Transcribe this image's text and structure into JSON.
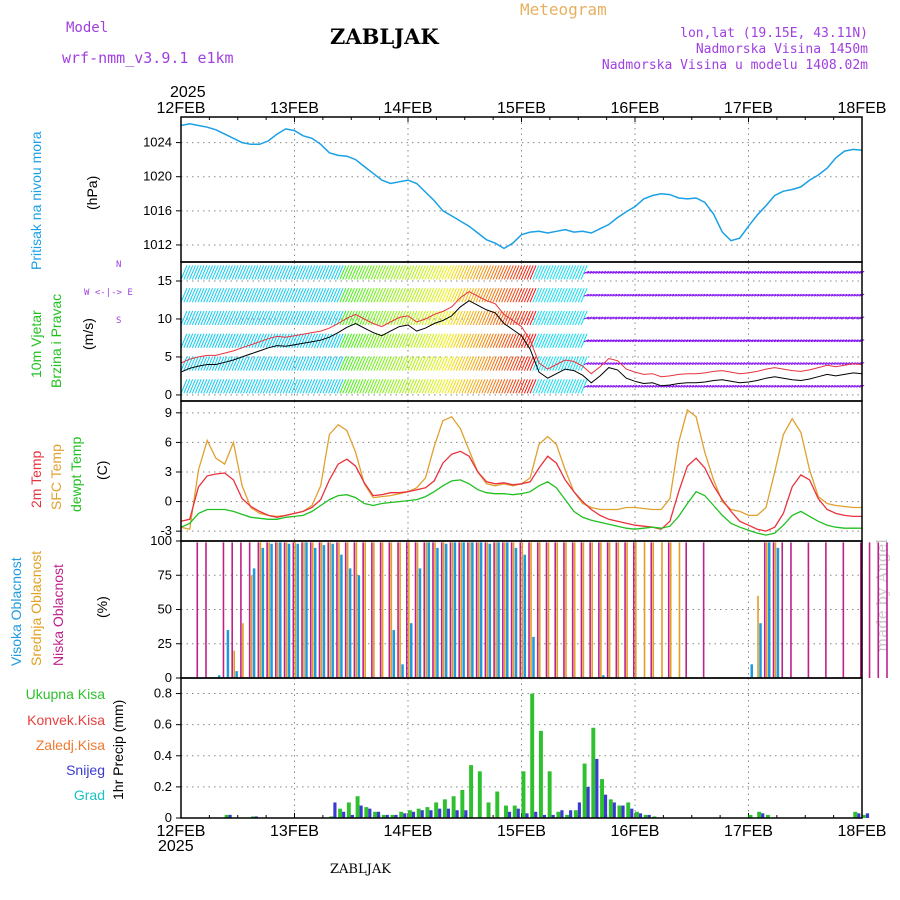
{
  "header": {
    "model_label": "Model",
    "model_name": "wrf-nmm_v3.9.1 e1km",
    "station": "ZABLJAK",
    "meteogram": "Meteogram",
    "lonlat": "lon,lat (19.15E, 43.11N)",
    "altitude": "Nadmorska Visina 1450m",
    "model_altitude": "Nadmorska Visina u modelu 1408.02m",
    "year_top": "2025",
    "year_bottom": "2025",
    "footer_station": "ZABLJAK",
    "watermark": "made by Angel"
  },
  "panel_labels": {
    "pressure": [
      "Pritisak na nivou mora",
      "(hPa)"
    ],
    "wind": [
      "10m Vjetar",
      "Brzina i Pravac",
      "(m/s)"
    ],
    "compass": [
      "N",
      "W <-|-> E",
      "S"
    ],
    "temp": [
      "2m Temp",
      "SFC Temp",
      "dewpt Temp",
      "(C)"
    ],
    "cloud": [
      "Visoka Oblacnost",
      "Srednja Oblacnost",
      "Niska Oblacnost",
      "(%)"
    ],
    "precip_axis": "1hr Precip (mm)",
    "precip_legend": [
      "Ukupna Kisa",
      "Konvek.Kisa",
      "Zaledj.Kisa",
      "Snijeg",
      "Grad"
    ]
  },
  "colors": {
    "pressure": "#1aa0e6",
    "temp2m": "#e8323c",
    "sfc": "#e0a030",
    "dew": "#22c022",
    "high_cloud": "#1e9be0",
    "mid_cloud": "#e0a020",
    "low_cloud": "#c0208c",
    "total_rain": "#2ec02e",
    "conv_rain": "#e84040",
    "frz_rain": "#ee7a30",
    "snow": "#3a3ad0",
    "hail": "#20c0c0",
    "model": "#a040e0",
    "meteogram": "#e6b060"
  },
  "chart_data": [
    {
      "type": "line",
      "x_ticks": [
        "12FEB",
        "13FEB",
        "14FEB",
        "15FEB",
        "16FEB",
        "17FEB",
        "18FEB"
      ],
      "y_ticks": [
        "1012",
        "1016",
        "1020",
        "1024"
      ],
      "ylim": [
        1010,
        1027
      ],
      "series": [
        {
          "values": [
            1026,
            1026.2,
            1026,
            1025.8,
            1025.5,
            1025,
            1024.5,
            1024,
            1023.8,
            1023.8,
            1024.2,
            1025,
            1025.6,
            1025.4,
            1024.8,
            1024.5,
            1023.8,
            1022.8,
            1022.5,
            1022.4,
            1022,
            1021.2,
            1020.4,
            1019.6,
            1019.2,
            1019.4,
            1019.6,
            1019.2,
            1018.2,
            1017.2,
            1016,
            1015.4,
            1014.8,
            1014.2,
            1013.4,
            1012.6,
            1012.2,
            1011.6,
            1012.2,
            1013.2,
            1013.5,
            1013.6,
            1013.4,
            1013.6,
            1013.8,
            1013.5,
            1013.6,
            1013.4,
            1013.9,
            1014.4,
            1015.2,
            1015.9,
            1016.5,
            1017.4,
            1017.8,
            1018,
            1017.9,
            1017.5,
            1017.4,
            1017.5,
            1017,
            1015.6,
            1013.5,
            1012.5,
            1012.8,
            1014.2,
            1015.5,
            1016.6,
            1017.8,
            1018.3,
            1018.5,
            1018.8,
            1019.6,
            1020.2,
            1021,
            1022.2,
            1023,
            1023.2,
            1023.1
          ]
        }
      ]
    },
    {
      "type": "line",
      "y_ticks": [
        "0",
        "5",
        "10",
        "15"
      ],
      "ylim": [
        -0.8,
        17.5
      ],
      "series": [
        {
          "values": [
            3,
            3.5,
            3.8,
            4,
            4,
            4.3,
            4.6,
            5,
            5.4,
            5.8,
            6.2,
            6.5,
            6.4,
            6.6,
            6.8,
            7,
            7.2,
            7.6,
            8.2,
            8.9,
            9.4,
            8.8,
            8.2,
            7.8,
            8.4,
            9,
            9.2,
            8.4,
            8.8,
            9.4,
            9.8,
            10.4,
            11.6,
            12.4,
            11.8,
            11.2,
            10.8,
            9.4,
            8.6,
            7.8,
            6,
            3,
            2.2,
            2.8,
            3.4,
            3.2,
            2.6,
            1.6,
            2.5,
            3.6,
            3.3,
            2.2,
            1.8,
            1.5,
            1.6,
            1.2,
            1.3,
            1.5,
            1.6,
            1.6,
            1.7,
            1.9,
            2,
            1.8,
            1.6,
            1.7,
            1.9,
            2.2,
            2.4,
            2.2,
            2,
            1.9,
            2.1,
            2.4,
            2.7,
            2.5,
            2.7,
            2.9,
            2.8
          ]
        }
      ]
    },
    {
      "type": "line",
      "y_ticks": [
        "-3",
        "0",
        "3",
        "6",
        "9"
      ],
      "ylim": [
        -4,
        10.2
      ],
      "series": [
        {
          "values": [
            -2,
            -1.8,
            1.5,
            2.6,
            2.8,
            2.9,
            2.2,
            0.3,
            -0.5,
            -1,
            -1.4,
            -1.6,
            -1.4,
            -1.2,
            -1,
            -0.6,
            0.2,
            2.2,
            3.8,
            4.3,
            3.6,
            1.9,
            0.6,
            0.7,
            0.9,
            0.9,
            1,
            1.2,
            1.4,
            2.1,
            3.9,
            4.8,
            5.1,
            4.6,
            3,
            2,
            1.8,
            1.9,
            1.7,
            1.8,
            2,
            3.4,
            4.6,
            3.9,
            2.2,
            1,
            0,
            -0.8,
            -1.4,
            -1.8,
            -2,
            -2.2,
            -2.4,
            -2.5,
            -2.6,
            -2.8,
            -2,
            1,
            3.6,
            4.4,
            3.4,
            1.6,
            0.2,
            -1,
            -2,
            -2.4,
            -2.8,
            -3,
            -2.6,
            -1.2,
            1.5,
            2.7,
            2.2,
            0.3,
            -0.8,
            -1.2,
            -1.4,
            -1.5,
            -1.5
          ]
        },
        {
          "values": [
            -2.6,
            -2.8,
            3.2,
            6.2,
            4.4,
            3.8,
            6,
            1.6,
            -0.6,
            -1.2,
            -1.4,
            -1.5,
            -1.4,
            -1.2,
            -1,
            -0.4,
            1.6,
            6.8,
            7.8,
            7.2,
            5,
            1.8,
            0.4,
            0.5,
            0.6,
            0.8,
            1,
            1.4,
            2.4,
            5.6,
            8.2,
            8.6,
            7.4,
            5.2,
            3,
            1.8,
            1.6,
            1.8,
            1.6,
            1.8,
            2.4,
            5.8,
            6.6,
            5.8,
            3.2,
            1,
            -0.2,
            -0.6,
            -0.8,
            -0.8,
            -0.8,
            -0.6,
            -0.6,
            -0.7,
            -0.8,
            -0.8,
            0.3,
            6,
            9.3,
            8.6,
            5,
            2.2,
            0,
            -0.8,
            -1,
            -1.4,
            -1.4,
            -0.6,
            3,
            6.8,
            8.4,
            7,
            3.2,
            0.5,
            -0.2,
            -0.4,
            -0.5,
            -0.6,
            -0.6
          ]
        },
        {
          "values": [
            -2.6,
            -2.2,
            -1.2,
            -0.8,
            -0.8,
            -0.8,
            -1,
            -1.3,
            -1.6,
            -1.7,
            -1.8,
            -1.8,
            -1.6,
            -1.5,
            -1.4,
            -1,
            -0.4,
            0.2,
            0.6,
            0.7,
            0.4,
            -0.2,
            -0.4,
            -0.2,
            -0.1,
            0,
            0.1,
            0.2,
            0.5,
            1,
            1.6,
            2.1,
            2.2,
            1.8,
            1.2,
            0.9,
            0.8,
            0.8,
            0.7,
            0.8,
            1,
            1.6,
            2,
            1.4,
            0.2,
            -1,
            -1.6,
            -1.9,
            -2.1,
            -2.3,
            -2.5,
            -2.7,
            -2.8,
            -2.7,
            -2.6,
            -2.7,
            -2.5,
            -1.5,
            -0.2,
            1,
            0.6,
            -0.4,
            -1.4,
            -2.2,
            -2.6,
            -2.9,
            -3.2,
            -3.4,
            -3.2,
            -2.4,
            -1.4,
            -1,
            -1.5,
            -2,
            -2.4,
            -2.6,
            -2.7,
            -2.7,
            -2.7
          ]
        }
      ]
    },
    {
      "type": "bar",
      "y_ticks": [
        "0",
        "25",
        "50",
        "75",
        "100"
      ],
      "ylim": [
        0,
        100
      ],
      "series": [
        {
          "name": "Visoka Oblacnost",
          "values": [
            0,
            0,
            0,
            0,
            2,
            35,
            5,
            0,
            80,
            95,
            98,
            99,
            98,
            98,
            99,
            95,
            97,
            98,
            90,
            80,
            75,
            0,
            0,
            0,
            35,
            10,
            40,
            80,
            99,
            95,
            98,
            99,
            99,
            99,
            99,
            98,
            99,
            99,
            95,
            90,
            30,
            0,
            0,
            0,
            0,
            0,
            0,
            0,
            2,
            0,
            0,
            0,
            0,
            0,
            0,
            0,
            0,
            0,
            0,
            0,
            0,
            0,
            0,
            0,
            0,
            10,
            40,
            99,
            95,
            0,
            0,
            0,
            0,
            0,
            0,
            0,
            0,
            0,
            0,
            0
          ]
        },
        {
          "name": "Srednja Oblacnost",
          "values": [
            0,
            0,
            0,
            0,
            0,
            0,
            20,
            40,
            75,
            99,
            99,
            99,
            99,
            99,
            99,
            99,
            99,
            99,
            99,
            99,
            99,
            99,
            99,
            99,
            99,
            99,
            99,
            99,
            99,
            99,
            99,
            99,
            99,
            99,
            99,
            99,
            99,
            99,
            99,
            99,
            99,
            99,
            99,
            99,
            99,
            99,
            99,
            99,
            99,
            99,
            99,
            99,
            99,
            99,
            99,
            99,
            99,
            99,
            0,
            0,
            0,
            0,
            0,
            0,
            0,
            0,
            60,
            99,
            99,
            0,
            0,
            0,
            0,
            0,
            0,
            0,
            0,
            0,
            0,
            0
          ]
        },
        {
          "name": "Niska Oblacnost",
          "values": [
            0,
            0,
            99,
            99,
            0,
            99,
            99,
            99,
            99,
            99,
            99,
            99,
            99,
            99,
            99,
            99,
            99,
            99,
            99,
            99,
            99,
            99,
            99,
            99,
            99,
            99,
            99,
            99,
            99,
            99,
            99,
            99,
            99,
            99,
            99,
            99,
            99,
            99,
            99,
            99,
            99,
            99,
            99,
            99,
            99,
            99,
            99,
            99,
            99,
            99,
            99,
            99,
            99,
            0,
            99,
            0,
            99,
            0,
            99,
            0,
            99,
            0,
            0,
            0,
            0,
            0,
            0,
            99,
            99,
            99,
            99,
            0,
            99,
            0,
            99,
            0,
            99,
            0,
            99,
            99,
            99,
            99
          ]
        }
      ]
    },
    {
      "type": "bar",
      "y_ticks": [
        "0",
        "0.2",
        "0.4",
        "0.6",
        "0.8"
      ],
      "ylim": [
        0,
        0.9
      ],
      "series": [
        {
          "name": "Ukupna Kisa",
          "values": [
            0,
            0,
            0,
            0,
            0,
            0.02,
            0,
            0,
            0.01,
            0,
            0,
            0,
            0,
            0,
            0,
            0,
            0,
            0.01,
            0.06,
            0.1,
            0.14,
            0.07,
            0.04,
            0.02,
            0.02,
            0.04,
            0.05,
            0.06,
            0.07,
            0.1,
            0.12,
            0.14,
            0.18,
            0.34,
            0.3,
            0.1,
            0.17,
            0.08,
            0.08,
            0.3,
            0.8,
            0.56,
            0.3,
            0.04,
            0.02,
            0.05,
            0.35,
            0.58,
            0.25,
            0.12,
            0.08,
            0.1,
            0.04,
            0.02,
            0.01,
            0,
            0,
            0,
            0,
            0,
            0,
            0,
            0,
            0,
            0,
            0.02,
            0.04,
            0.02,
            0,
            0,
            0,
            0,
            0,
            0,
            0,
            0,
            0,
            0.04,
            0.02
          ]
        },
        {
          "name": "Snijeg",
          "values": [
            0,
            0,
            0,
            0,
            0,
            0.02,
            0,
            0,
            0.01,
            0,
            0,
            0,
            0,
            0,
            0,
            0,
            0,
            0.1,
            0.04,
            0.02,
            0.08,
            0.06,
            0.04,
            0.02,
            0.02,
            0.03,
            0.04,
            0.05,
            0.05,
            0.06,
            0.06,
            0.05,
            0.05,
            0,
            0,
            0,
            0,
            0.04,
            0.06,
            0.03,
            0.04,
            0.02,
            0.02,
            0.05,
            0.05,
            0.1,
            0.2,
            0.38,
            0.15,
            0.1,
            0.08,
            0.06,
            0.03,
            0.02,
            0,
            0,
            0,
            0,
            0,
            0,
            0,
            0,
            0,
            0,
            0,
            0,
            0.03,
            0,
            0,
            0,
            0,
            0,
            0,
            0,
            0,
            0,
            0,
            0.03,
            0.03
          ]
        }
      ]
    }
  ]
}
